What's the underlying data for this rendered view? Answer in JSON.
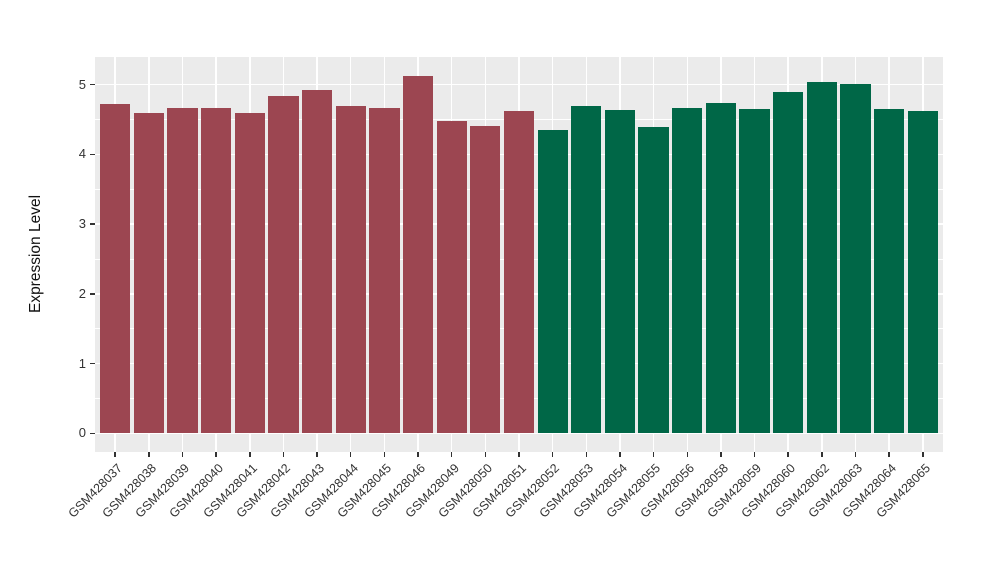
{
  "figure": {
    "background": "#FFFFFF",
    "panel_background": "#EBEBEB",
    "grid_color": "#FFFFFF",
    "axis_text_color": "#333333",
    "axis_title_color": "#111111",
    "group_colors": {
      "left_group": "#9C4651",
      "right_group": "#006747"
    }
  },
  "chart_data": {
    "type": "bar",
    "title": "",
    "xlabel": "",
    "ylabel": "Expression Level",
    "ylim": [
      -0.27,
      5.4
    ],
    "yticks": [
      0,
      1,
      2,
      3,
      4,
      5
    ],
    "grid": "horizontal major+minor (0.5 steps), vertical major at each category; white on gray panel",
    "legend": "none",
    "bars": [
      {
        "label": "GSM428037",
        "value": 4.72,
        "group": "left_group"
      },
      {
        "label": "GSM428038",
        "value": 4.59,
        "group": "left_group"
      },
      {
        "label": "GSM428039",
        "value": 4.67,
        "group": "left_group"
      },
      {
        "label": "GSM428040",
        "value": 4.66,
        "group": "left_group"
      },
      {
        "label": "GSM428041",
        "value": 4.6,
        "group": "left_group"
      },
      {
        "label": "GSM428042",
        "value": 4.84,
        "group": "left_group"
      },
      {
        "label": "GSM428043",
        "value": 4.93,
        "group": "left_group"
      },
      {
        "label": "GSM428044",
        "value": 4.69,
        "group": "left_group"
      },
      {
        "label": "GSM428045",
        "value": 4.67,
        "group": "left_group"
      },
      {
        "label": "GSM428046",
        "value": 5.13,
        "group": "left_group"
      },
      {
        "label": "GSM428049",
        "value": 4.48,
        "group": "left_group"
      },
      {
        "label": "GSM428050",
        "value": 4.41,
        "group": "left_group"
      },
      {
        "label": "GSM428051",
        "value": 4.62,
        "group": "left_group"
      },
      {
        "label": "GSM428052",
        "value": 4.35,
        "group": "right_group"
      },
      {
        "label": "GSM428053",
        "value": 4.7,
        "group": "right_group"
      },
      {
        "label": "GSM428054",
        "value": 4.64,
        "group": "right_group"
      },
      {
        "label": "GSM428055",
        "value": 4.39,
        "group": "right_group"
      },
      {
        "label": "GSM428056",
        "value": 4.67,
        "group": "right_group"
      },
      {
        "label": "GSM428058",
        "value": 4.74,
        "group": "right_group"
      },
      {
        "label": "GSM428059",
        "value": 4.65,
        "group": "right_group"
      },
      {
        "label": "GSM428060",
        "value": 4.9,
        "group": "right_group"
      },
      {
        "label": "GSM428062",
        "value": 5.04,
        "group": "right_group"
      },
      {
        "label": "GSM428063",
        "value": 5.01,
        "group": "right_group"
      },
      {
        "label": "GSM428064",
        "value": 4.65,
        "group": "right_group"
      },
      {
        "label": "GSM428065",
        "value": 4.62,
        "group": "right_group"
      }
    ]
  }
}
